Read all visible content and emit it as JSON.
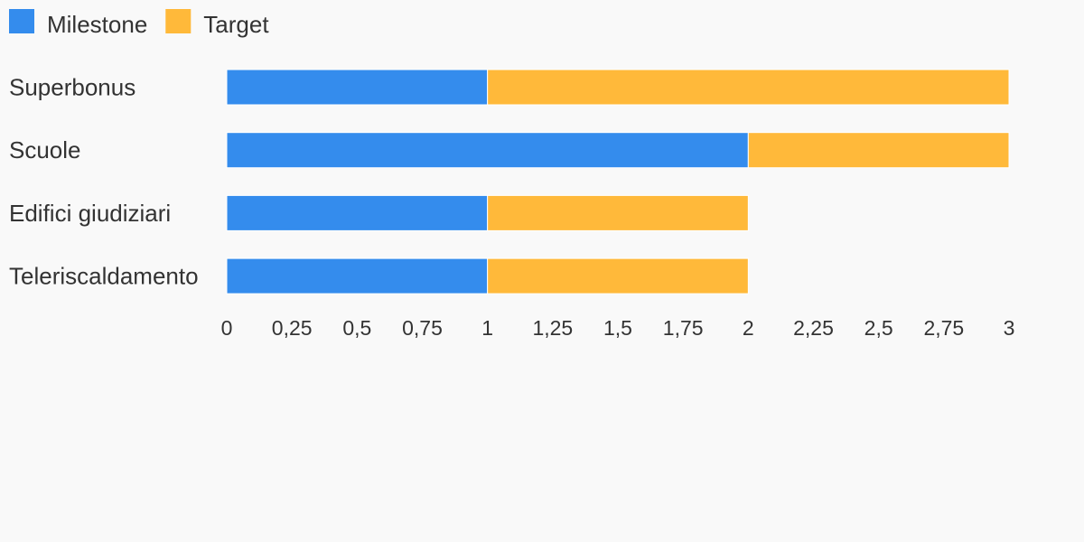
{
  "chart_data": {
    "type": "bar",
    "orientation": "horizontal",
    "stacked": true,
    "categories": [
      "Superbonus",
      "Scuole",
      "Edifici giudiziari",
      "Teleriscaldamento"
    ],
    "series": [
      {
        "name": "Milestone",
        "color": "#348ced",
        "values": [
          1,
          2,
          1,
          1
        ]
      },
      {
        "name": "Target",
        "color": "#ffb93a",
        "values": [
          2,
          1,
          1,
          1
        ]
      }
    ],
    "xlim": [
      0,
      3
    ],
    "xticks": [
      0,
      0.25,
      0.5,
      0.75,
      1,
      1.25,
      1.5,
      1.75,
      2,
      2.25,
      2.5,
      2.75,
      3
    ],
    "xtick_labels": [
      "0",
      "0,25",
      "0,5",
      "0,75",
      "1",
      "1,25",
      "1,5",
      "1,75",
      "2",
      "2,25",
      "2,5",
      "2,75",
      "3"
    ],
    "grid": false,
    "legend_position": "top-left"
  }
}
